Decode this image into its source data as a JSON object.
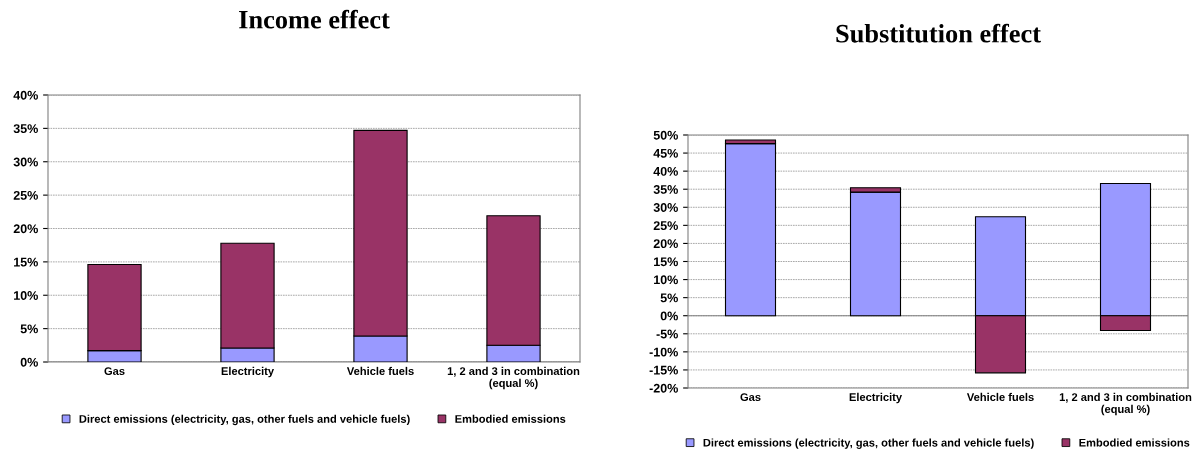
{
  "chart_data": [
    {
      "type": "bar",
      "title": "Income effect",
      "stacked": true,
      "categories": [
        "Gas",
        "Electricity",
        "Vehicle fuels",
        "1, 2 and 3 in combination\n(equal %)"
      ],
      "series": [
        {
          "name": "Direct emissions (electricity, gas, other fuels and vehicle fuels)",
          "color": "#9999ff",
          "values": [
            1.7,
            2.1,
            3.9,
            2.5
          ]
        },
        {
          "name": "Embodied emissions",
          "color": "#993366",
          "values": [
            12.9,
            15.7,
            30.8,
            19.4
          ]
        }
      ],
      "ylim": [
        0,
        40
      ],
      "yticks": [
        {
          "value": 0,
          "label": "0%"
        },
        {
          "value": 5,
          "label": "5%"
        },
        {
          "value": 10,
          "label": "10%"
        },
        {
          "value": 15,
          "label": "15%"
        },
        {
          "value": 20,
          "label": "20%"
        },
        {
          "value": 25,
          "label": "25%"
        },
        {
          "value": 30,
          "label": "30%"
        },
        {
          "value": 35,
          "label": "35%"
        },
        {
          "value": 40,
          "label": "40%"
        }
      ],
      "grid": "y",
      "legend": "bottom"
    },
    {
      "type": "bar",
      "title": "Substitution effect",
      "stacked": true,
      "categories": [
        "Gas",
        "Electricity",
        "Vehicle fuels",
        "1, 2 and 3 in combination\n(equal %)"
      ],
      "series": [
        {
          "name": "Direct emissions (electricity, gas, other fuels and vehicle fuels)",
          "color": "#9999ff",
          "values": [
            47.6,
            34.2,
            27.4,
            36.6
          ]
        },
        {
          "name": "Embodied emissions",
          "color": "#993366",
          "values": [
            1.0,
            1.2,
            -15.8,
            -4.1
          ]
        }
      ],
      "ylim": [
        -20,
        50
      ],
      "yticks": [
        {
          "value": -20,
          "label": "-20%"
        },
        {
          "value": -15,
          "label": "-15%"
        },
        {
          "value": -10,
          "label": "-10%"
        },
        {
          "value": -5,
          "label": "-5%"
        },
        {
          "value": 0,
          "label": "0%"
        },
        {
          "value": 5,
          "label": "5%"
        },
        {
          "value": 10,
          "label": "10%"
        },
        {
          "value": 15,
          "label": "15%"
        },
        {
          "value": 20,
          "label": "20%"
        },
        {
          "value": 25,
          "label": "25%"
        },
        {
          "value": 30,
          "label": "30%"
        },
        {
          "value": 35,
          "label": "35%"
        },
        {
          "value": 40,
          "label": "40%"
        },
        {
          "value": 45,
          "label": "45%"
        },
        {
          "value": 50,
          "label": "50%"
        }
      ],
      "grid": "y",
      "legend": "bottom"
    }
  ]
}
